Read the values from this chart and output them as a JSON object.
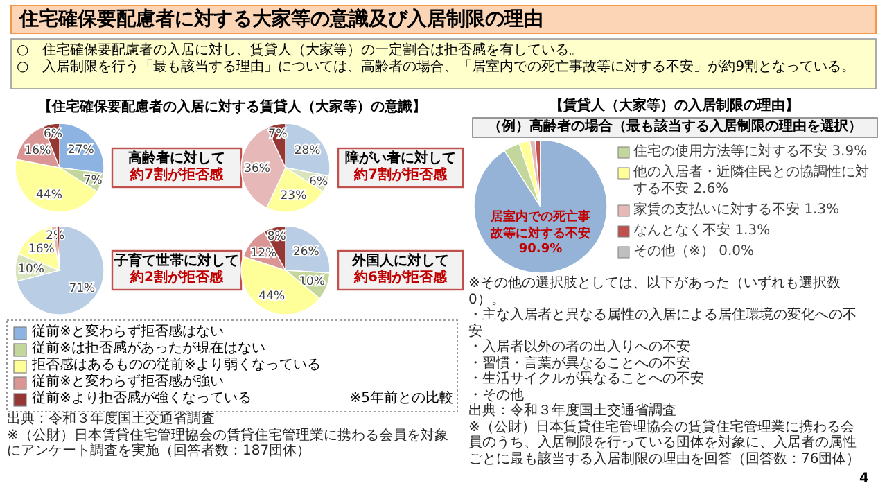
{
  "chart_data": [
    {
      "type": "other",
      "title": "住宅確保要配慮者に対する大家等の意識及び入居制限の理由",
      "annotations": [
        "○　住宅確保要配慮者の入居に対し、賃貸人（大家等）の一定割合は拒否感を有している。",
        "○　入居制限を行う「最も該当する理由」については、高齢者の場合、「居室内での死亡事故等に対する不安」が約9割となっている。",
        "4"
      ]
    },
    {
      "type": "pie",
      "title": "【住宅確保要配慮者の入居に対する賃貸人（大家等）の意識】",
      "categories": [
        "従前※と変わらず拒否感はない",
        "従前※は拒否感があったが現在はない",
        "拒否感はあるものの従前※より弱くなっている",
        "従前※と変わらず拒否感が強い",
        "従前※より拒否感が強くなっている"
      ],
      "values": [
        27,
        7,
        44,
        16,
        6
      ],
      "colors": [
        "#8db3e2",
        "#c3d69b",
        "#ffff99",
        "#d99694",
        "#953735"
      ],
      "value_labels": [
        "27%",
        "7%",
        "44%",
        "16%",
        "6%"
      ],
      "legend": "bottom",
      "legend_title": "※5年前との比較",
      "annotations": [
        "高齢者に対して",
        "約7割が拒否感",
        "出典：令和３年度国土交通省調査",
        "※（公財）日本賃貸住宅管理協会の賃貸住宅管理業に携わる会員を対象にアンケート調査を実施（回答者数：187団体）"
      ]
    },
    {
      "type": "pie",
      "categories": [
        null,
        null,
        null,
        null,
        null
      ],
      "values": [
        28,
        6,
        23,
        36,
        7
      ],
      "colors": [
        "#b9cde5",
        "#d7e4bd",
        "#ffff99",
        "#e6b9b8",
        "#953735"
      ],
      "value_labels": [
        "28%",
        "6%",
        "23%",
        "36%",
        "7%"
      ],
      "annotations": [
        "障がい者に対して",
        "約7割が拒否感"
      ]
    },
    {
      "type": "pie",
      "categories": [
        null,
        null,
        null,
        null,
        null
      ],
      "values": [
        71,
        10,
        16,
        2,
        1
      ],
      "colors": [
        "#b9cde5",
        "#d7e4bd",
        "#ffff99",
        "#e6b9b8",
        "#953735"
      ],
      "value_labels": [
        "71%",
        "10%",
        "16%",
        "2%",
        null
      ],
      "annotations": [
        "子育て世帯に対して",
        "約2割が拒否感"
      ]
    },
    {
      "type": "pie",
      "categories": [
        null,
        null,
        null,
        null,
        null
      ],
      "values": [
        26,
        10,
        44,
        12,
        8
      ],
      "colors": [
        "#b9cde5",
        "#c3d69b",
        "#ffff99",
        "#d99694",
        "#953735"
      ],
      "value_labels": [
        "26%",
        "10%",
        "44%",
        "12%",
        "8%"
      ],
      "annotations": [
        "外国人に対して",
        "約6割が拒否感"
      ]
    },
    {
      "type": "pie",
      "title": "【賃貸人（大家等）の入居制限の理由】",
      "subtitle": "（例）高齢者の場合（最も該当する入居制限の理由を選択）",
      "categories": [
        "居室内での死亡事故等に対する不安",
        "住宅の使用方法等に対する不安",
        "他の入居者・近隣住民との協調性に対する不安",
        "家賃の支払いに対する不安",
        "なんとなく不安",
        "その他（※）"
      ],
      "values": [
        90.9,
        3.9,
        2.6,
        1.3,
        1.3,
        0.0
      ],
      "colors": [
        "#95b3d7",
        "#c3d69b",
        "#ffff99",
        "#e6b9b8",
        "#c0504d",
        "#bfbfbf"
      ],
      "value_labels": [
        "90.9%",
        "3.9%",
        "2.6%",
        "1.3%",
        "1.3%",
        "0.0%"
      ],
      "legend": "right",
      "annotations": [
        "※その他の選択肢としては、以下があった（いずれも選択数0）。",
        "・主な入居者と異なる属性の入居による居住環境の変化への不安",
        "・入居者以外の者の出入りへの不安",
        "・習慣・言葉が異なることへの不安",
        "・生活サイクルが異なることへの不安",
        "・その他",
        "出典：令和３年度国土交通省調査",
        "※（公財）日本賃貸住宅管理協会の賃貸住宅管理業に携わる会員のうち、入居制限を行っている団体を対象に、入居者の属性ごとに最も該当する入居制限の理由を回答（回答数：76団体）"
      ]
    }
  ]
}
